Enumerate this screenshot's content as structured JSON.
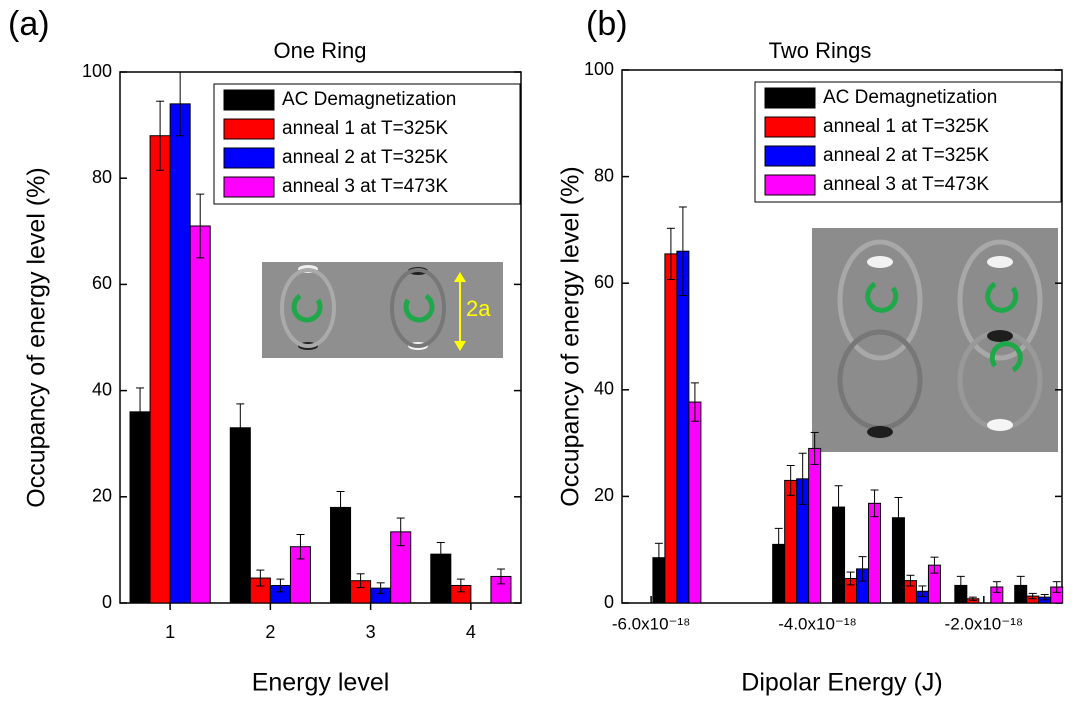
{
  "chart_data": [
    {
      "type": "bar",
      "panel_label": "(a)",
      "title": "One Ring",
      "xlabel": "Energy level",
      "ylabel": "Occupancy of energy level (%)",
      "categories": [
        "1",
        "2",
        "3",
        "4"
      ],
      "series": [
        {
          "name": "AC Demagnetization",
          "color": "#000000",
          "values": [
            36,
            33,
            18,
            9.2
          ],
          "errors": [
            4.5,
            4.5,
            3,
            2.2
          ]
        },
        {
          "name": "anneal 1 at T=325K",
          "color": "#ff0000",
          "values": [
            88,
            4.7,
            4.2,
            3.3
          ],
          "errors": [
            6.5,
            1.5,
            1.3,
            1.2
          ]
        },
        {
          "name": "anneal 2 at T=325K",
          "color": "#0000ff",
          "values": [
            94,
            3.3,
            2.8,
            null
          ],
          "errors": [
            6,
            1.2,
            1,
            null
          ]
        },
        {
          "name": "anneal 3 at T=473K",
          "color": "#ff00ff",
          "values": [
            71,
            10.6,
            13.4,
            5
          ],
          "errors": [
            6,
            2.3,
            2.6,
            1.4
          ]
        }
      ],
      "ylim": [
        0,
        100
      ],
      "yticks": [
        0,
        20,
        40,
        60,
        80,
        100
      ],
      "legend": "upper right",
      "inset_label": "2a"
    },
    {
      "type": "bar",
      "panel_label": "(b)",
      "title": "Two Rings",
      "xlabel": "Dipolar Energy (J)",
      "ylabel": "Occupancy of energy level (%)",
      "x": [
        -5.69e-18,
        -4.25e-18,
        -3.53e-18,
        -2.81e-18,
        -2.06e-18,
        -1.34e-18
      ],
      "series": [
        {
          "name": "AC Demagnetization",
          "color": "#000000",
          "values": [
            8.5,
            11,
            18,
            16,
            3.3,
            3.3
          ],
          "errors": [
            2.7,
            3,
            4,
            3.8,
            1.7,
            1.7
          ]
        },
        {
          "name": "anneal 1 at T=325K",
          "color": "#ff0000",
          "values": [
            65.5,
            23,
            4.6,
            4.2,
            0.8,
            1.3
          ],
          "errors": [
            4.8,
            2.8,
            1.2,
            1,
            0.3,
            0.5
          ]
        },
        {
          "name": "anneal 2 at T=325K",
          "color": "#0000ff",
          "values": [
            66,
            23.3,
            6.4,
            2.2,
            null,
            1.1
          ],
          "errors": [
            8.3,
            4.8,
            2.3,
            1,
            null,
            0.5
          ]
        },
        {
          "name": "anneal 3 at T=473K",
          "color": "#ff00ff",
          "values": [
            37.7,
            29,
            18.7,
            7.1,
            3,
            3
          ],
          "errors": [
            3.6,
            3,
            2.5,
            1.5,
            1,
            1
          ]
        }
      ],
      "xlim": [
        -6.35e-18,
        -1.06e-18
      ],
      "xticks": [
        {
          "value": -6e-18,
          "label": "-6.0x10⁻¹⁸"
        },
        {
          "value": -4e-18,
          "label": "-4.0x10⁻¹⁸"
        },
        {
          "value": -2e-18,
          "label": "-2.0x10⁻¹⁸"
        }
      ],
      "ylim": [
        0,
        100
      ],
      "yticks": [
        0,
        20,
        40,
        60,
        80,
        100
      ],
      "legend": "upper right"
    }
  ]
}
